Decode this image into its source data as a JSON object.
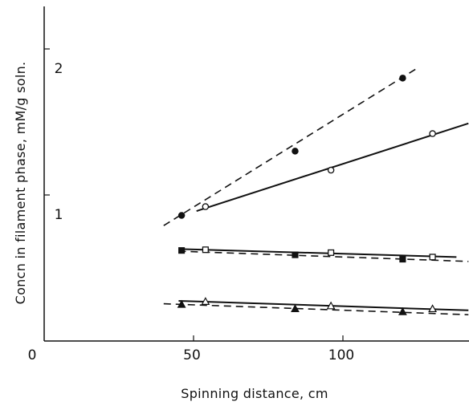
{
  "chart_data": {
    "type": "scatter",
    "title": "",
    "xlabel": "Spinning distance, cm",
    "ylabel": "Concn in filament phase, mM/g soln.",
    "xlim": [
      0,
      142
    ],
    "ylim": [
      0,
      2.4
    ],
    "grid": false,
    "legend": "none",
    "x_ticks": [
      {
        "value": 0,
        "label": "0"
      },
      {
        "value": 50,
        "label": "50"
      },
      {
        "value": 100,
        "label": "100"
      }
    ],
    "y_ticks": [
      {
        "value": 1,
        "label": "1"
      },
      {
        "value": 2,
        "label": "2"
      }
    ],
    "series": [
      {
        "marker": "filled-circle",
        "line": "dashed",
        "points": [
          [
            46,
            0.86
          ],
          [
            84,
            1.3
          ],
          [
            120,
            1.8
          ]
        ],
        "fit": [
          [
            40,
            0.79
          ],
          [
            125,
            1.87
          ]
        ]
      },
      {
        "marker": "open-circle",
        "line": "solid",
        "points": [
          [
            54,
            0.92
          ],
          [
            96,
            1.17
          ],
          [
            130,
            1.42
          ]
        ],
        "fit": [
          [
            51,
            0.89
          ],
          [
            142,
            1.49
          ]
        ]
      },
      {
        "marker": "filled-square",
        "line": "dashed",
        "points": [
          [
            46,
            0.62
          ],
          [
            84,
            0.59
          ],
          [
            120,
            0.56
          ]
        ],
        "fit": [
          [
            45,
            0.615
          ],
          [
            142,
            0.545
          ]
        ]
      },
      {
        "marker": "open-square",
        "line": "solid",
        "points": [
          [
            54,
            0.625
          ],
          [
            96,
            0.605
          ],
          [
            130,
            0.575
          ]
        ],
        "fit": [
          [
            45,
            0.63
          ],
          [
            138,
            0.575
          ]
        ]
      },
      {
        "marker": "filled-triangle",
        "line": "dashed",
        "points": [
          [
            46,
            0.25
          ],
          [
            84,
            0.22
          ],
          [
            120,
            0.2
          ]
        ],
        "fit": [
          [
            40,
            0.255
          ],
          [
            142,
            0.18
          ]
        ]
      },
      {
        "marker": "open-triangle",
        "line": "solid",
        "points": [
          [
            54,
            0.27
          ],
          [
            96,
            0.24
          ],
          [
            130,
            0.22
          ]
        ],
        "fit": [
          [
            45,
            0.275
          ],
          [
            142,
            0.21
          ]
        ]
      }
    ]
  }
}
